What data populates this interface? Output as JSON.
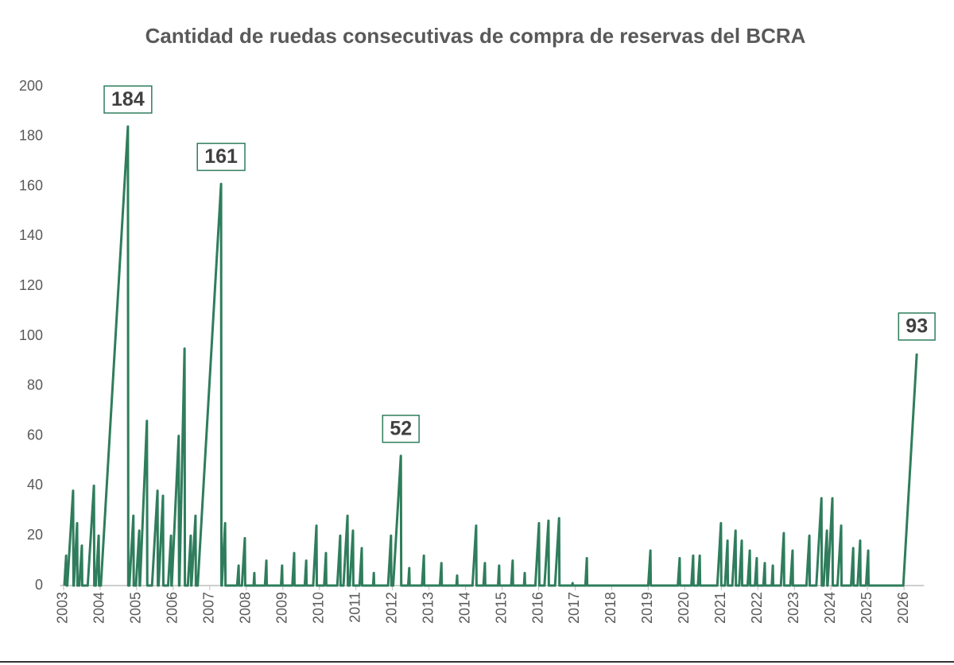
{
  "chart_data": {
    "type": "line",
    "title": "Cantidad de ruedas consecutivas de compra de reservas del BCRA",
    "color": "#2f7d5c",
    "x": [
      2003.02,
      2003.07,
      2003.08,
      2003.1,
      2003.26,
      2003.27,
      2003.28,
      2003.37,
      2003.38,
      2003.43,
      2003.5,
      2003.51,
      2003.66,
      2003.83,
      2003.84,
      2003.88,
      2003.96,
      2003.97,
      2004.02,
      2004.76,
      2004.77,
      2004.8,
      2004.91,
      2004.92,
      2004.98,
      2005.07,
      2005.08,
      2005.09,
      2005.28,
      2005.29,
      2005.42,
      2005.57,
      2005.58,
      2005.6,
      2005.72,
      2005.73,
      2005.86,
      2005.94,
      2005.95,
      2005.96,
      2006.15,
      2006.16,
      2006.17,
      2006.31,
      2006.32,
      2006.4,
      2006.48,
      2006.49,
      2006.5,
      2006.61,
      2006.62,
      2006.67,
      2007.31,
      2007.32,
      2007.33,
      2007.42,
      2007.43,
      2007.75,
      2007.79,
      2007.8,
      2007.88,
      2007.96,
      2007.97,
      2008.2,
      2008.22,
      2008.23,
      2008.51,
      2008.55,
      2008.56,
      2008.95,
      2008.98,
      2008.99,
      2009.26,
      2009.31,
      2009.32,
      2009.6,
      2009.64,
      2009.65,
      2009.83,
      2009.92,
      2009.93,
      2010.13,
      2010.18,
      2010.19,
      2010.49,
      2010.57,
      2010.58,
      2010.66,
      2010.77,
      2010.78,
      2010.83,
      2010.92,
      2010.93,
      2011.1,
      2011.16,
      2011.17,
      2011.47,
      2011.49,
      2011.5,
      2011.88,
      2011.96,
      2011.97,
      2012.02,
      2012.23,
      2012.24,
      2012.43,
      2012.46,
      2012.47,
      2012.81,
      2012.86,
      2012.87,
      2013.3,
      2013.34,
      2013.35,
      2013.75,
      2013.77,
      2013.78,
      2014.19,
      2014.29,
      2014.3,
      2014.49,
      2014.53,
      2014.54,
      2014.89,
      2014.92,
      2014.93,
      2015.25,
      2015.29,
      2015.3,
      2015.6,
      2015.62,
      2015.63,
      2015.91,
      2016.01,
      2016.02,
      2016.16,
      2016.27,
      2016.28,
      2016.45,
      2016.56,
      2016.57,
      2016.92,
      2016.93,
      2016.94,
      2017.28,
      2017.32,
      2017.33,
      2019.0,
      2019.06,
      2019.07,
      2019.81,
      2019.86,
      2019.87,
      2020.18,
      2020.23,
      2020.24,
      2020.36,
      2020.41,
      2020.42,
      2020.89,
      2020.99,
      2021.0,
      2021.1,
      2021.17,
      2021.18,
      2021.3,
      2021.39,
      2021.4,
      2021.49,
      2021.56,
      2021.57,
      2021.72,
      2021.78,
      2021.79,
      2021.92,
      2021.97,
      2021.98,
      2022.15,
      2022.19,
      2022.2,
      2022.38,
      2022.41,
      2022.42,
      2022.63,
      2022.71,
      2022.72,
      2022.89,
      2022.95,
      2022.96,
      2023.33,
      2023.41,
      2023.42,
      2023.6,
      2023.74,
      2023.75,
      2023.8,
      2023.89,
      2023.9,
      2023.91,
      2024.04,
      2024.05,
      2024.18,
      2024.28,
      2024.29,
      2024.55,
      2024.61,
      2024.62,
      2024.73,
      2024.8,
      2024.81,
      2024.96,
      2025.02,
      2025.03,
      2025.98,
      2026.35
    ],
    "values": [
      0,
      12,
      0,
      0,
      38,
      0,
      0,
      25,
      0,
      0,
      16,
      0,
      0,
      40,
      0,
      0,
      20,
      0,
      0,
      184,
      0,
      0,
      28,
      0,
      0,
      22,
      0,
      0,
      66,
      0,
      0,
      38,
      0,
      0,
      36,
      0,
      0,
      20,
      0,
      0,
      60,
      0,
      0,
      95,
      0,
      0,
      20,
      0,
      0,
      28,
      0,
      0,
      161,
      0,
      0,
      25,
      0,
      0,
      8,
      0,
      0,
      19,
      0,
      0,
      5,
      0,
      0,
      10,
      0,
      0,
      8,
      0,
      0,
      13,
      0,
      0,
      10,
      0,
      0,
      24,
      0,
      0,
      13,
      0,
      0,
      20,
      0,
      0,
      28,
      0,
      0,
      22,
      0,
      0,
      15,
      0,
      0,
      5,
      0,
      0,
      20,
      0,
      0,
      52,
      0,
      0,
      7,
      0,
      0,
      12,
      0,
      0,
      9,
      0,
      0,
      4,
      0,
      0,
      24,
      0,
      0,
      9,
      0,
      0,
      8,
      0,
      0,
      10,
      0,
      0,
      5,
      0,
      0,
      25,
      0,
      0,
      26,
      0,
      0,
      27,
      0,
      0,
      1,
      0,
      0,
      11,
      0,
      0,
      14,
      0,
      0,
      11,
      0,
      0,
      12,
      0,
      0,
      12,
      0,
      0,
      25,
      0,
      0,
      18,
      0,
      0,
      22,
      0,
      0,
      18,
      0,
      0,
      14,
      0,
      0,
      11,
      0,
      0,
      9,
      0,
      0,
      8,
      0,
      0,
      21,
      0,
      0,
      14,
      0,
      0,
      20,
      0,
      0,
      35,
      0,
      0,
      22,
      0,
      0,
      35,
      0,
      0,
      24,
      0,
      0,
      15,
      0,
      0,
      18,
      0,
      0,
      14,
      0,
      0,
      93
    ],
    "annotations": [
      {
        "x": 2004.76,
        "y": 184
      },
      {
        "x": 2007.31,
        "y": 161
      },
      {
        "x": 2012.23,
        "y": 52
      },
      {
        "x": 2026.35,
        "y": 93
      }
    ],
    "xlim": [
      2002.9,
      2026.55
    ],
    "xticks": [
      2003,
      2004,
      2005,
      2006,
      2007,
      2008,
      2009,
      2010,
      2011,
      2012,
      2013,
      2014,
      2015,
      2016,
      2017,
      2018,
      2019,
      2020,
      2021,
      2022,
      2023,
      2024,
      2025,
      2026
    ],
    "ylim": [
      0,
      200
    ],
    "yticks": [
      0,
      20,
      40,
      60,
      80,
      100,
      120,
      140,
      160,
      180,
      200
    ],
    "grid": false
  }
}
